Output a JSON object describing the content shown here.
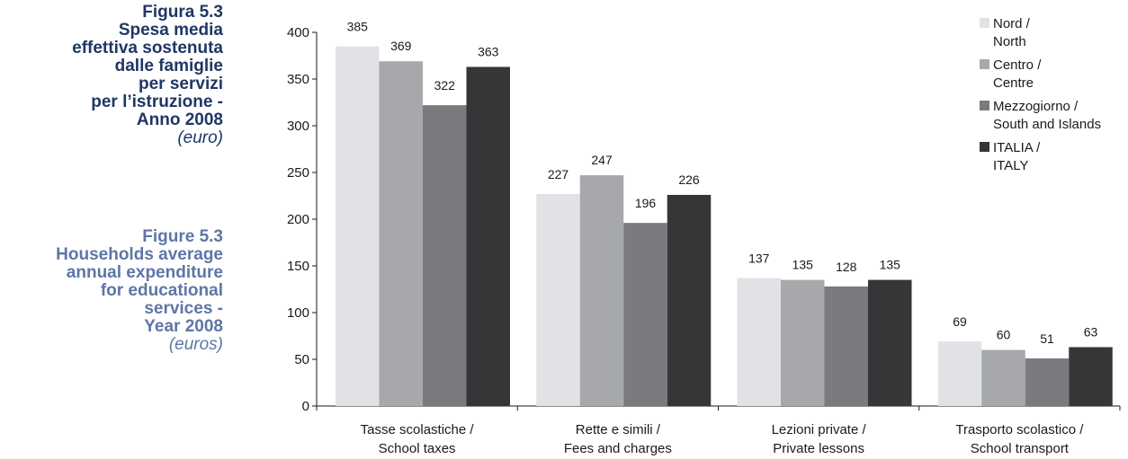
{
  "caption": {
    "it": {
      "lines": [
        "Figura 5.3",
        "Spesa media",
        "effettiva sostenuta",
        "dalle famiglie",
        "per servizi",
        "per l’istruzione -",
        "Anno 2008"
      ],
      "unit": "(euro)",
      "color": "#1f3764"
    },
    "en": {
      "lines": [
        "Figure 5.3",
        "Households average",
        "annual expenditure",
        "for educational",
        "services -",
        "Year 2008"
      ],
      "unit": "(euros)",
      "color": "#5d76a6"
    }
  },
  "chart_data": {
    "type": "bar",
    "categories": [
      [
        "Tasse scolastiche /",
        "School taxes"
      ],
      [
        "Rette e simili /",
        "Fees and charges"
      ],
      [
        "Lezioni private /",
        "Private lessons"
      ],
      [
        "Trasporto scolastico /",
        "School transport"
      ]
    ],
    "series": [
      {
        "name": [
          "Nord /",
          "North"
        ],
        "values": [
          385,
          227,
          137,
          69
        ],
        "color": "#e1e2e5"
      },
      {
        "name": [
          "Centro /",
          "Centre"
        ],
        "values": [
          369,
          247,
          135,
          60
        ],
        "color": "#a6a8ab"
      },
      {
        "name": [
          "Mezzogiorno /",
          "South and Islands"
        ],
        "values": [
          322,
          196,
          128,
          51
        ],
        "color": "#7a7b7f"
      },
      {
        "name": [
          "ITALIA /",
          "ITALY"
        ],
        "values": [
          363,
          226,
          135,
          63
        ],
        "color": "#363638"
      }
    ],
    "ylim": [
      0,
      400
    ],
    "yticks": [
      "0",
      "50",
      "100",
      "150",
      "200",
      "250",
      "300",
      "350",
      "400"
    ],
    "grid": false,
    "legend": "top-right",
    "data_labels": true
  }
}
